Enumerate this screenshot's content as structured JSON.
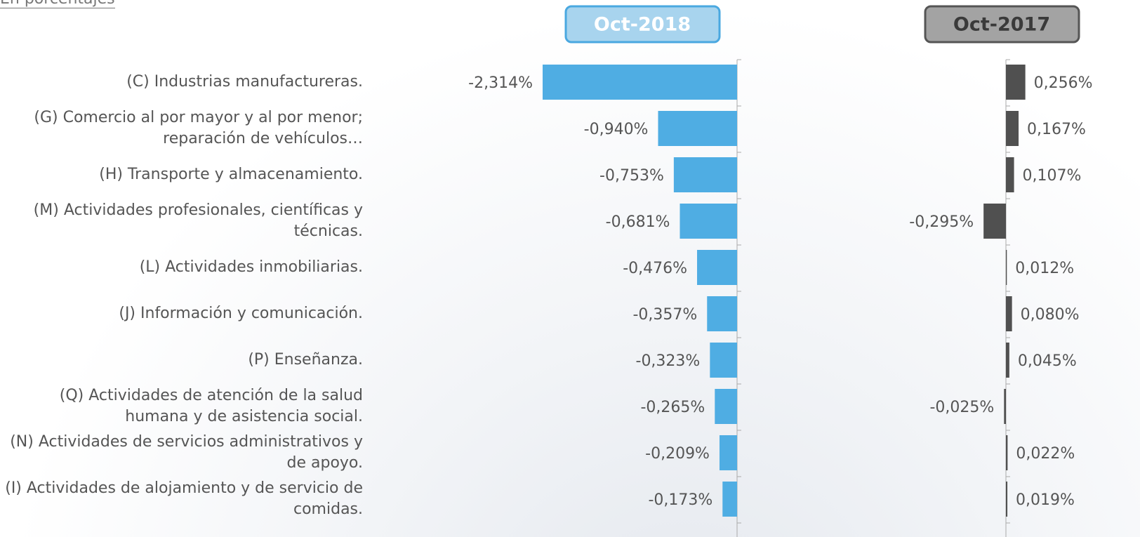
{
  "note": "En porcentajes",
  "chart_data": [
    {
      "type": "bar",
      "orientation": "horizontal",
      "title": "Oct-2018",
      "color": "#4fade3",
      "categories": [
        "(C) Industrias manufactureras.",
        "(G) Comercio al por mayor y al por menor; reparación de vehículos…",
        "(H) Transporte y almacenamiento.",
        "(M) Actividades profesionales, científicas y técnicas.",
        "(L) Actividades inmobiliarias.",
        "(J) Información y comunicación.",
        "(P) Enseñanza.",
        "(Q) Actividades de atención de la salud humana y de asistencia social.",
        "(N) Actividades de servicios administrativos y de apoyo.",
        "(I) Actividades de alojamiento y de servicio de comidas."
      ],
      "values": [
        -2.314,
        -0.94,
        -0.753,
        -0.681,
        -0.476,
        -0.357,
        -0.323,
        -0.265,
        -0.209,
        -0.173
      ],
      "value_labels": [
        "-2,314%",
        "-0,940%",
        "-0,753%",
        "-0,681%",
        "-0,476%",
        "-0,357%",
        "-0,323%",
        "-0,265%",
        "-0,209%",
        "-0,173%"
      ]
    },
    {
      "type": "bar",
      "orientation": "horizontal",
      "title": "Oct-2017",
      "color": "#505050",
      "values": [
        0.256,
        0.167,
        0.107,
        -0.295,
        0.012,
        0.08,
        0.045,
        -0.025,
        0.022,
        0.019
      ],
      "value_labels": [
        "0,256%",
        "0,167%",
        "0,107%",
        "-0,295%",
        "0,012%",
        "0,080%",
        "0,045%",
        "-0,025%",
        "0,022%",
        "0,019%"
      ]
    }
  ]
}
